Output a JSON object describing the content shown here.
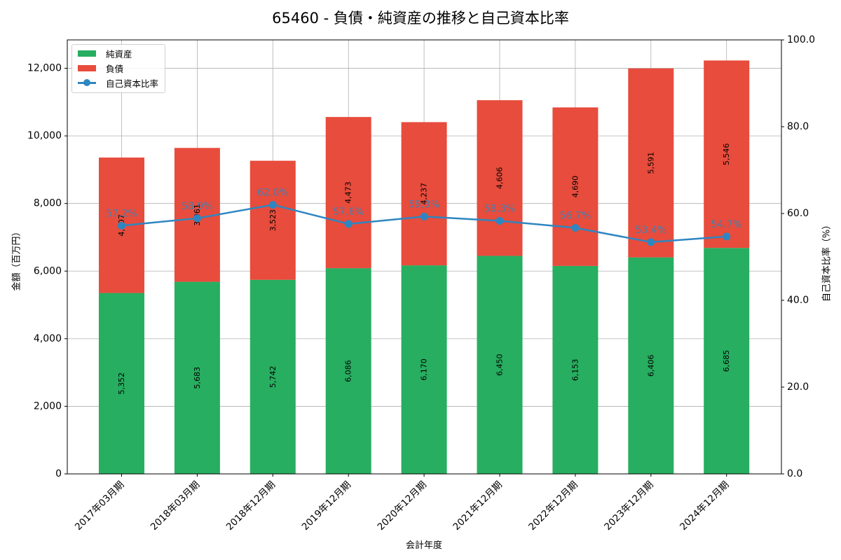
{
  "title": "65460 - 負債・純資産の推移と自己資本比率",
  "axes": {
    "x_label": "会計年度",
    "y_left_label": "金額（百万円）",
    "y_right_label": "自己資本比率（%）",
    "y_left_ticks": [
      "0",
      "2,000",
      "4,000",
      "6,000",
      "8,000",
      "10,000",
      "12,000"
    ],
    "y_right_ticks": [
      "0.0",
      "20.0",
      "40.0",
      "60.0",
      "80.0",
      "100.0"
    ]
  },
  "legend": {
    "items": [
      {
        "label": "純資産",
        "color": "#27ae60",
        "kind": "bar"
      },
      {
        "label": "負債",
        "color": "#e74c3c",
        "kind": "bar"
      },
      {
        "label": "自己資本比率",
        "color": "#2e86c1",
        "kind": "line"
      }
    ]
  },
  "colors": {
    "net_assets": "#27ae60",
    "liabilities": "#e74c3c",
    "equity_ratio": "#2e86c1",
    "grid": "#b0b0b0"
  },
  "chart_data": {
    "type": "bar",
    "stacked": true,
    "title": "65460 - 負債・純資産の推移と自己資本比率",
    "xlabel": "会計年度",
    "ylabel": "金額（百万円）",
    "y2label": "自己資本比率（%）",
    "ylim": [
      0,
      12840
    ],
    "y2lim": [
      0,
      100
    ],
    "grid": true,
    "legend_position": "upper left",
    "categories": [
      "2017年03月期",
      "2018年03月期",
      "2018年12月期",
      "2019年12月期",
      "2020年12月期",
      "2021年12月期",
      "2022年12月期",
      "2023年12月期",
      "2024年12月期"
    ],
    "series": [
      {
        "name": "純資産",
        "type": "bar",
        "axis": "left",
        "values": [
          5352,
          5683,
          5742,
          6086,
          6170,
          6450,
          6153,
          6406,
          6685
        ],
        "labels": [
          "5,352",
          "5,683",
          "5,742",
          "6,086",
          "6,170",
          "6,450",
          "6,153",
          "6,406",
          "6,685"
        ]
      },
      {
        "name": "負債",
        "type": "bar",
        "axis": "left",
        "values": [
          4007,
          3961,
          3523,
          4473,
          4237,
          4606,
          4690,
          5591,
          5546
        ],
        "labels": [
          "4,007",
          "3,961",
          "3,523",
          "4,473",
          "4,237",
          "4,606",
          "4,690",
          "5,591",
          "5,546"
        ]
      },
      {
        "name": "自己資本比率",
        "type": "line",
        "axis": "right",
        "values": [
          57.2,
          58.9,
          62.0,
          57.6,
          59.3,
          58.3,
          56.7,
          53.4,
          54.7
        ],
        "labels": [
          "57.2%",
          "58.9%",
          "62.0%",
          "57.6%",
          "59.3%",
          "58.3%",
          "56.7%",
          "53.4%",
          "54.7%"
        ]
      }
    ]
  }
}
